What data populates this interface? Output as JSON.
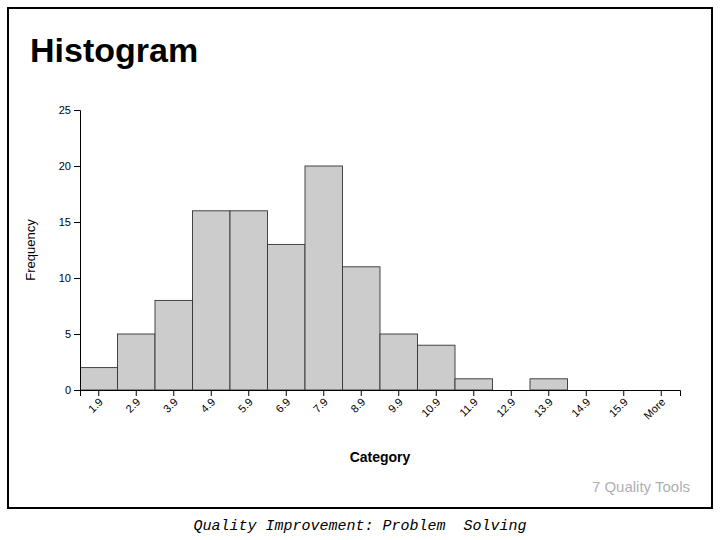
{
  "chart_data": {
    "type": "bar",
    "title": "Histogram",
    "subtitle": "7 Quality Tools",
    "annotations": [
      "Quality Improvement: Problem  Solving"
    ],
    "xlabel": "Category",
    "ylabel": "Frequency",
    "categories": [
      "1.9",
      "2.9",
      "3.9",
      "4.9",
      "5.9",
      "6.9",
      "7.9",
      "8.9",
      "9.9",
      "10.9",
      "11.9",
      "12.9",
      "13.9",
      "14.9",
      "15.9",
      "More"
    ],
    "values": [
      2,
      5,
      8,
      16,
      16,
      13,
      20,
      11,
      5,
      4,
      1,
      0,
      1,
      0,
      0,
      0
    ],
    "color": "#cccccc",
    "ylim": [
      0,
      25
    ],
    "yticks": [
      0,
      5,
      10,
      15,
      20,
      25
    ],
    "grid": false
  }
}
